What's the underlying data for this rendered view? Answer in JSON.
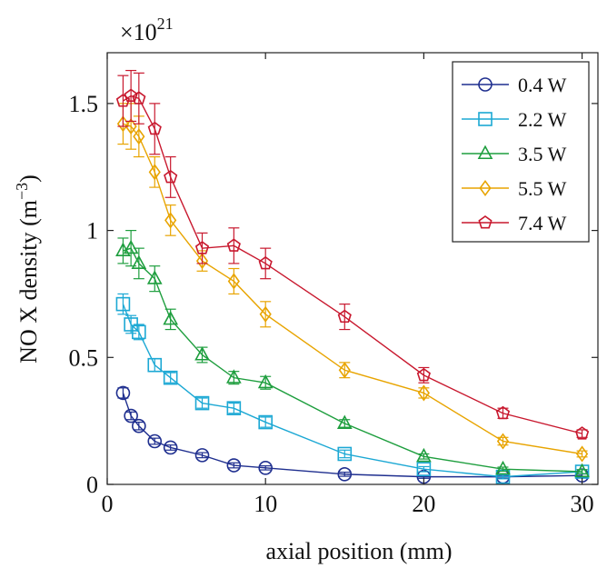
{
  "chart_data": {
    "type": "line",
    "xlabel": "axial position (mm)",
    "ylabel": "NO X density (m⁻³)",
    "ylabel_parts": [
      "NO X density (m",
      "−3",
      ")"
    ],
    "multiplier": "×10",
    "multiplier_exp": "21",
    "xlim": [
      0,
      31
    ],
    "ylim": [
      0,
      1.7
    ],
    "xticks": [
      0,
      10,
      20,
      30
    ],
    "yticks": [
      0,
      0.5,
      1,
      1.5
    ],
    "ytick_labels": [
      "0",
      "0.5",
      "1",
      "1.5"
    ],
    "legend_position": "top-right",
    "grid": false,
    "x": [
      1,
      1.5,
      2,
      3,
      4,
      6,
      8,
      10,
      15,
      20,
      25,
      30
    ],
    "series": [
      {
        "name": "0.4 W",
        "color": "#1f2f8f",
        "marker": "circle",
        "values": [
          0.36,
          0.27,
          0.23,
          0.17,
          0.145,
          0.115,
          0.075,
          0.065,
          0.04,
          0.03,
          0.03,
          0.035
        ],
        "errors": [
          0.02,
          0.015,
          0.015,
          0.012,
          0.01,
          0.01,
          0.01,
          0.008,
          0.008,
          0.006,
          0.006,
          0.006
        ]
      },
      {
        "name": "2.2 W",
        "color": "#1ca8d4",
        "marker": "square",
        "values": [
          0.71,
          0.63,
          0.6,
          0.47,
          0.42,
          0.32,
          0.3,
          0.245,
          0.12,
          0.06,
          0.03,
          0.05
        ],
        "errors": [
          0.04,
          0.035,
          0.03,
          0.025,
          0.02,
          0.02,
          0.02,
          0.02,
          0.015,
          0.01,
          0.008,
          0.008
        ]
      },
      {
        "name": "3.5 W",
        "color": "#1e9e3e",
        "marker": "triangle",
        "values": [
          0.92,
          0.93,
          0.87,
          0.81,
          0.65,
          0.51,
          0.42,
          0.4,
          0.24,
          0.11,
          0.06,
          0.05
        ],
        "errors": [
          0.05,
          0.07,
          0.06,
          0.05,
          0.04,
          0.03,
          0.025,
          0.025,
          0.015,
          0.01,
          0.008,
          0.008
        ]
      },
      {
        "name": "5.5 W",
        "color": "#e8a400",
        "marker": "diamond",
        "values": [
          1.42,
          1.41,
          1.37,
          1.23,
          1.04,
          0.88,
          0.8,
          0.67,
          0.45,
          0.36,
          0.17,
          0.12
        ],
        "errors": [
          0.08,
          0.09,
          0.08,
          0.06,
          0.06,
          0.04,
          0.05,
          0.05,
          0.03,
          0.02,
          0.015,
          0.012
        ]
      },
      {
        "name": "7.4 W",
        "color": "#c8182e",
        "marker": "pentagon",
        "values": [
          1.51,
          1.53,
          1.52,
          1.4,
          1.21,
          0.93,
          0.94,
          0.87,
          0.66,
          0.43,
          0.28,
          0.2
        ],
        "errors": [
          0.1,
          0.1,
          0.1,
          0.1,
          0.08,
          0.06,
          0.07,
          0.06,
          0.05,
          0.03,
          0.02,
          0.015
        ]
      }
    ]
  }
}
